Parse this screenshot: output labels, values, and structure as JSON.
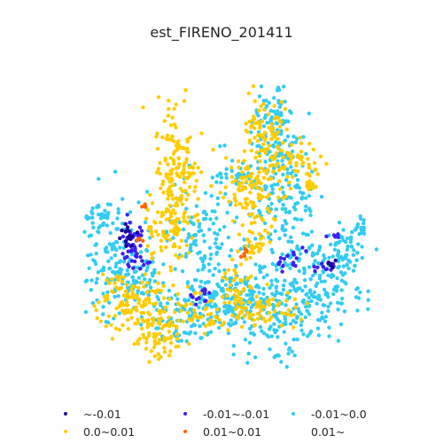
{
  "title": "est_FIRENO_201411",
  "chart_data": {
    "type": "scatter",
    "title": "est_FIRENO_201411",
    "legend": [
      {
        "label": "~-0.01",
        "color": "#1a0099"
      },
      {
        "label": "-0.01~-0.01",
        "color": "#3d1ff2"
      },
      {
        "label": "-0.01~0.0",
        "color": "#33ccf2"
      },
      {
        "label": "0.0~0.01",
        "color": "#ffcc00"
      },
      {
        "label": "0.01~0.01",
        "color": "#ff6600"
      },
      {
        "label": "0.01~",
        "color": "#ffffff"
      }
    ],
    "legend_placement": "bottom",
    "grid": false,
    "axes_visible": false
  }
}
